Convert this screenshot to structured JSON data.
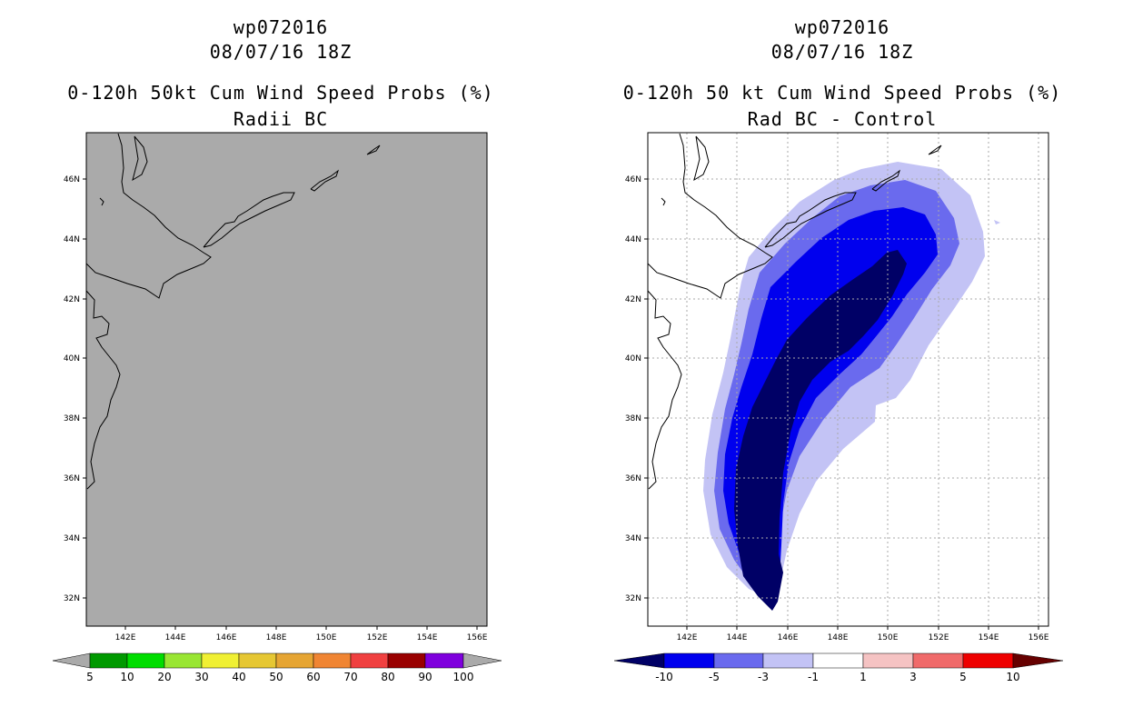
{
  "left_panel": {
    "title_lines": [
      "wp072016",
      "08/07/16 18Z",
      "0-120h 50kt Cum Wind Speed Probs (%)",
      "Radii BC"
    ],
    "lat_labels": [
      "46N",
      "44N",
      "42N",
      "40N",
      "38N",
      "36N",
      "34N",
      "32N"
    ],
    "lon_labels": [
      "142E",
      "144E",
      "146E",
      "148E",
      "150E",
      "152E",
      "154E",
      "156E"
    ],
    "colorbar": {
      "colors": [
        "#009900",
        "#00dd00",
        "#99e633",
        "#f0f033",
        "#e6c733",
        "#e6a533",
        "#f08533",
        "#f04040",
        "#990000",
        "#7f00dd"
      ],
      "end_arrow_color": "#aaaaaa",
      "labels": [
        "5",
        "10",
        "20",
        "30",
        "40",
        "50",
        "60",
        "70",
        "80",
        "90",
        "100"
      ]
    }
  },
  "right_panel": {
    "title_lines": [
      "wp072016",
      "08/07/16 18Z",
      "0-120h 50 kt Cum Wind Speed Probs (%)",
      "Rad BC - Control"
    ],
    "lat_labels": [
      "46N",
      "44N",
      "42N",
      "40N",
      "38N",
      "36N",
      "34N",
      "32N"
    ],
    "lon_labels": [
      "142E",
      "144E",
      "146E",
      "148E",
      "150E",
      "152E",
      "154E",
      "156E"
    ],
    "contour_colors": {
      "lt_minus_10": "#000066",
      "minus_10_to_minus_5": "#0000ee",
      "minus_5_to_minus_3": "#6a6aee",
      "minus_3_to_minus_1": "#c3c3f5"
    },
    "colorbar": {
      "colors": [
        "#0000ee",
        "#6a6aee",
        "#c3c3f5",
        "#ffffff",
        "#f5c3c3",
        "#f06a6a",
        "#ee0000"
      ],
      "left_arrow_color": "#000066",
      "right_arrow_color": "#660000",
      "labels": [
        "-10",
        "-5",
        "-3",
        "-1",
        "1",
        "3",
        "5",
        "10"
      ]
    }
  }
}
